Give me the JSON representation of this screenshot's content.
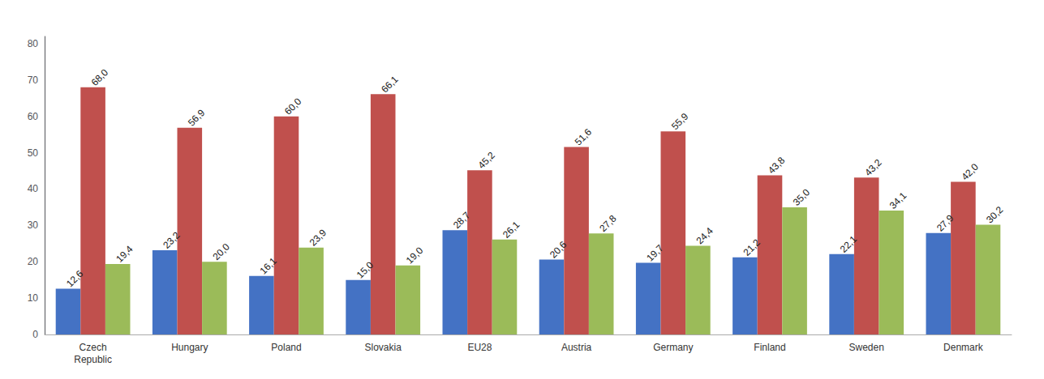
{
  "chart_data": {
    "type": "bar",
    "categories": [
      "Czech\nRepublic",
      "Hungary",
      "Poland",
      "Slovakia",
      "EU28",
      "Austria",
      "Germany",
      "Finland",
      "Sweden",
      "Denmark"
    ],
    "series": [
      {
        "color": "#4472C4",
        "values": [
          12.6,
          23.2,
          16.1,
          15.0,
          28.7,
          20.6,
          19.7,
          21.2,
          22.1,
          27.9
        ],
        "value_labels": [
          "12,6",
          "23,2",
          "16,1",
          "15,0",
          "28,7",
          "20,6",
          "19,7",
          "21,2",
          "22,1",
          "27,9"
        ]
      },
      {
        "color": "#C0504D",
        "values": [
          68.0,
          56.9,
          60.0,
          66.1,
          45.2,
          51.6,
          55.9,
          43.8,
          43.2,
          42.0
        ],
        "value_labels": [
          "68,0",
          "56,9",
          "60,0",
          "66,1",
          "45,2",
          "51,6",
          "55,9",
          "43,8",
          "43,2",
          "42,0"
        ]
      },
      {
        "color": "#9BBB59",
        "values": [
          19.4,
          20.0,
          23.9,
          19.0,
          26.1,
          27.8,
          24.4,
          35.0,
          34.1,
          30.2
        ],
        "value_labels": [
          "19,4",
          "20,0",
          "23,9",
          "19,0",
          "26,1",
          "27,8",
          "24,4",
          "35,0",
          "34,1",
          "30,2"
        ]
      }
    ],
    "ylim": [
      0,
      82
    ],
    "yticks": [
      0,
      10,
      20,
      30,
      40,
      50,
      60,
      70,
      80
    ],
    "grid": false,
    "data_labels": true
  }
}
